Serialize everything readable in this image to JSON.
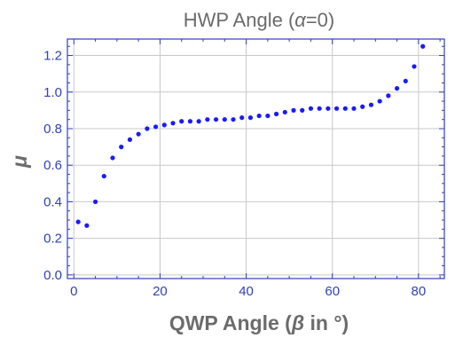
{
  "chart_data": {
    "type": "scatter",
    "title_prefix": "HWP Angle (",
    "title_symbol": "α",
    "title_suffix": "=0)",
    "xlabel_prefix": "QWP Angle (",
    "xlabel_symbol": "β",
    "xlabel_suffix": " in °)",
    "ylabel": "μ",
    "xlim": [
      -1.5,
      86
    ],
    "ylim": [
      -0.02,
      1.29
    ],
    "x_ticks": [
      0,
      20,
      40,
      60,
      80
    ],
    "y_ticks": [
      0.0,
      0.2,
      0.4,
      0.6,
      0.8,
      1.0,
      1.2
    ],
    "x_minor_step": 5,
    "y_minor_step": 0.05,
    "grid": true,
    "colors": {
      "points": "#1a1aff",
      "frame": "#2f3fbf",
      "text": "#6b6b6b",
      "grid": "#c8c8c8"
    },
    "series": [
      {
        "x": [
          1,
          3,
          5,
          7,
          9,
          11,
          13,
          15,
          17,
          19,
          21,
          23,
          25,
          27,
          29,
          31,
          33,
          35,
          37,
          39,
          41,
          43,
          45,
          47,
          49,
          51,
          53,
          55,
          57,
          59,
          61,
          63,
          65,
          67,
          69,
          71,
          73,
          75,
          77,
          79,
          81
        ],
        "y": [
          0.29,
          0.27,
          0.4,
          0.54,
          0.64,
          0.7,
          0.74,
          0.77,
          0.8,
          0.81,
          0.82,
          0.83,
          0.84,
          0.84,
          0.84,
          0.85,
          0.85,
          0.85,
          0.85,
          0.86,
          0.86,
          0.87,
          0.87,
          0.88,
          0.89,
          0.9,
          0.9,
          0.91,
          0.91,
          0.91,
          0.91,
          0.91,
          0.91,
          0.92,
          0.93,
          0.95,
          0.98,
          1.02,
          1.06,
          1.14,
          1.25
        ]
      }
    ]
  }
}
